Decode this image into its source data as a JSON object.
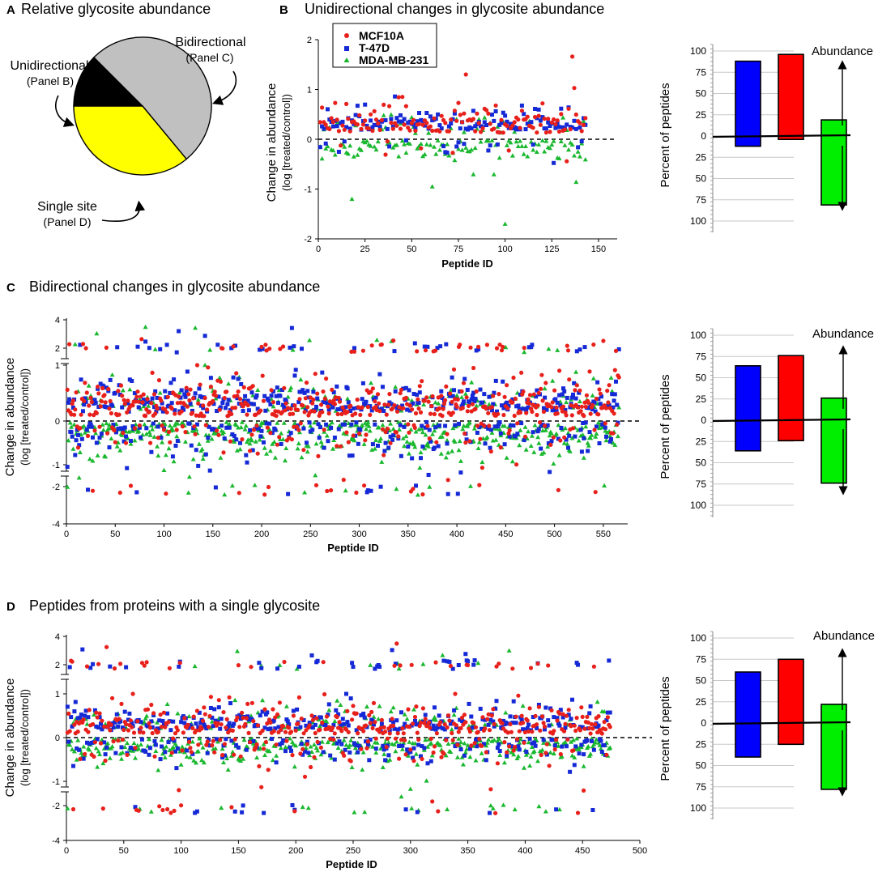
{
  "colors": {
    "mcf10a": "#e8201b",
    "t47d": "#1529d6",
    "mda": "#19b82e",
    "bar_blue": "#0000ff",
    "bar_red": "#ff0000",
    "bar_green": "#00ee00",
    "pie_black": "#000000",
    "pie_gray": "#c0c0c0",
    "pie_yellow": "#ffff00"
  },
  "panel_a": {
    "letter": "A",
    "title": "Relative glycosite abundance",
    "labels": {
      "bidirectional": "Bidirectional",
      "bidirectional_sub": "(Panel C)",
      "unidirectional": "Unidirectional",
      "unidirectional_sub": "(Panel B)",
      "single": "Single site",
      "single_sub": "(Panel D)"
    }
  },
  "panel_b": {
    "letter": "B",
    "title": "Unidirectional changes in glycosite abundance"
  },
  "panel_c": {
    "letter": "C",
    "title": "Bidirectional changes in glycosite abundance"
  },
  "panel_d": {
    "letter": "D",
    "title": "Peptides from proteins with a single glycosite"
  },
  "legend": {
    "items": [
      "MCF10A",
      "T-47D",
      "MDA-MB-231"
    ]
  },
  "axes": {
    "scatter_ylabel": "Change in abundance",
    "scatter_ylabel_sub": "(log [treated/control])",
    "scatter_xlabel": "Peptide ID",
    "bar_ylabel": "Percent of peptides",
    "bar_note": "Abundance"
  },
  "chart_data": [
    {
      "id": "pie",
      "type": "pie",
      "title": "Relative glycosite abundance",
      "categories": [
        "Unidirectional",
        "Bidirectional",
        "Single site"
      ],
      "values": [
        12.5,
        51.5,
        36.0
      ]
    },
    {
      "id": "scatterB",
      "type": "scatter",
      "title": "Unidirectional changes in glycosite abundance",
      "xlabel": "Peptide ID",
      "ylabel": "Change in abundance (log [treated/control])",
      "xlim": [
        0,
        160
      ],
      "ylim": [
        -2,
        2
      ],
      "xticks": [
        0,
        25,
        50,
        75,
        100,
        125,
        150
      ],
      "yticks": [
        -2,
        -1,
        0,
        1,
        2
      ],
      "n": 143,
      "seed": 11,
      "series": [
        {
          "name": "MCF10A",
          "mean": 0.22,
          "sd": 0.24,
          "pos_frac": 0.96,
          "hi_count": 6
        },
        {
          "name": "T-47D",
          "mean": 0.32,
          "sd": 0.18,
          "pos_frac": 0.88,
          "hi_count": 2
        },
        {
          "name": "MDA-MB-231",
          "mean": -0.2,
          "sd": 0.2,
          "pos_frac": 0.2,
          "lo_count": 4
        }
      ],
      "highlight_points": [
        {
          "series": "MCF10A",
          "x": 136,
          "y": 1.66
        },
        {
          "series": "MCF10A",
          "x": 79,
          "y": 1.3
        },
        {
          "series": "MCF10A",
          "x": 137,
          "y": 1.03
        },
        {
          "series": "MDA-MB-231",
          "x": 18,
          "y": -1.2
        },
        {
          "series": "MDA-MB-231",
          "x": 100,
          "y": -1.7
        }
      ]
    },
    {
      "id": "barB",
      "type": "bar",
      "categories": [
        "T-47D",
        "MCF10A",
        "MDA-MB-231"
      ],
      "series": [
        {
          "name": "increased",
          "values": [
            88,
            96,
            19
          ]
        },
        {
          "name": "decreased",
          "values": [
            12,
            4,
            81
          ]
        }
      ],
      "ylabel": "Percent of peptides",
      "ylim": [
        -100,
        100
      ],
      "yticks": [
        100,
        75,
        50,
        25,
        0,
        25,
        50,
        75,
        100
      ]
    },
    {
      "id": "scatterC",
      "type": "scatter",
      "title": "Bidirectional changes in glycosite abundance",
      "xlabel": "Peptide ID",
      "ylabel": "Change in abundance (log [treated/control])",
      "xlim": [
        0,
        575
      ],
      "ylim": [
        -4,
        4
      ],
      "xticks": [
        0,
        50,
        100,
        150,
        200,
        250,
        300,
        350,
        400,
        450,
        500,
        550
      ],
      "yticks": [
        -4,
        -2,
        -1,
        0,
        1,
        2,
        4
      ],
      "n": 566,
      "seed": 23,
      "series": [
        {
          "name": "MCF10A",
          "mean": 0.15,
          "sd": 0.3,
          "pos_frac": 0.76,
          "hi_count": 45,
          "lo_count": 22
        },
        {
          "name": "T-47D",
          "mean": 0.28,
          "sd": 0.28,
          "pos_frac": 0.63,
          "hi_count": 40,
          "lo_count": 15
        },
        {
          "name": "MDA-MB-231",
          "mean": -0.3,
          "sd": 0.3,
          "pos_frac": 0.26,
          "hi_count": 15,
          "lo_count": 15
        }
      ]
    },
    {
      "id": "barC",
      "type": "bar",
      "categories": [
        "T-47D",
        "MCF10A",
        "MDA-MB-231"
      ],
      "series": [
        {
          "name": "increased",
          "values": [
            64,
            76,
            26
          ]
        },
        {
          "name": "decreased",
          "values": [
            36,
            24,
            74
          ]
        }
      ],
      "ylabel": "Percent of peptides",
      "ylim": [
        -100,
        100
      ],
      "yticks": [
        100,
        75,
        50,
        25,
        0,
        25,
        50,
        75,
        100
      ]
    },
    {
      "id": "scatterD",
      "type": "scatter",
      "title": "Peptides from proteins with a single glycosite",
      "xlabel": "Peptide ID",
      "ylabel": "Change in abundance (log [treated/control])",
      "xlim": [
        0,
        500
      ],
      "ylim": [
        -4,
        4
      ],
      "xticks": [
        0,
        50,
        100,
        150,
        200,
        250,
        300,
        350,
        400,
        450,
        500
      ],
      "yticks": [
        -4,
        -2,
        -1,
        0,
        1,
        2,
        4
      ],
      "n": 474,
      "seed": 37,
      "series": [
        {
          "name": "MCF10A",
          "mean": 0.15,
          "sd": 0.3,
          "pos_frac": 0.75,
          "hi_count": 32,
          "lo_count": 20
        },
        {
          "name": "T-47D",
          "mean": 0.28,
          "sd": 0.28,
          "pos_frac": 0.6,
          "hi_count": 38,
          "lo_count": 14
        },
        {
          "name": "MDA-MB-231",
          "mean": -0.3,
          "sd": 0.3,
          "pos_frac": 0.23,
          "hi_count": 14,
          "lo_count": 20
        }
      ]
    },
    {
      "id": "barD",
      "type": "bar",
      "categories": [
        "T-47D",
        "MCF10A",
        "MDA-MB-231"
      ],
      "series": [
        {
          "name": "increased",
          "values": [
            60,
            75,
            22
          ]
        },
        {
          "name": "decreased",
          "values": [
            40,
            25,
            78
          ]
        }
      ],
      "ylabel": "Percent of peptides",
      "ylim": [
        -100,
        100
      ],
      "yticks": [
        100,
        75,
        50,
        25,
        0,
        25,
        50,
        75,
        100
      ]
    }
  ]
}
